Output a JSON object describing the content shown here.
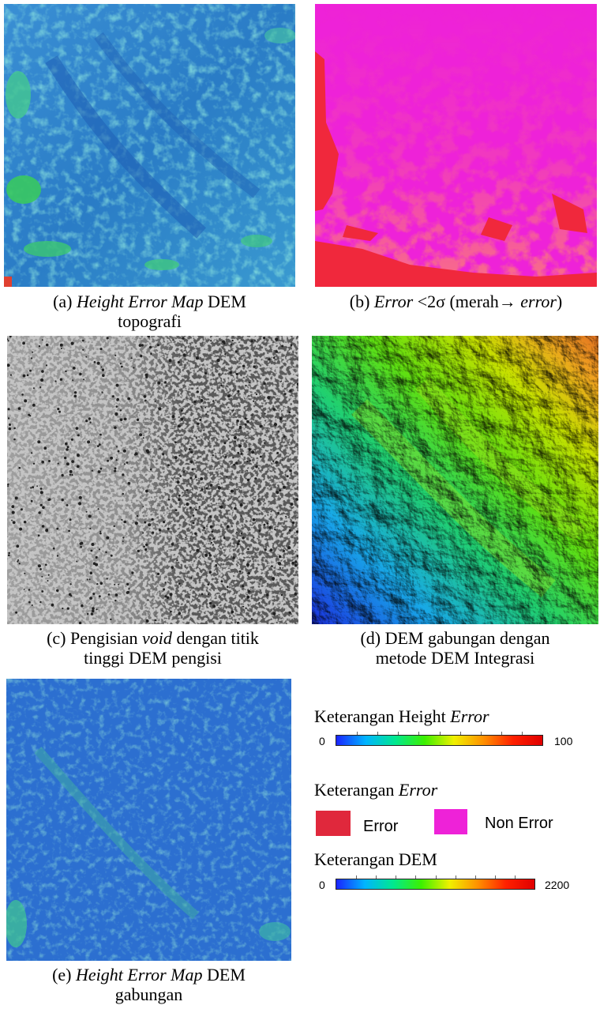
{
  "figures": [
    {
      "id": "a",
      "prefix": "(a) ",
      "italic": "Height Error Map",
      "suffix": " DEM",
      "line2": "topografi"
    },
    {
      "id": "b",
      "prefix": "(b) ",
      "italic": "Error",
      "suffix": " <2σ (merah→ ",
      "italic2": "error",
      "suffix2": ")"
    },
    {
      "id": "c",
      "prefix": "(c) Pengisian ",
      "italic": "void",
      "suffix": " dengan titik",
      "line2": "tinggi DEM pengisi"
    },
    {
      "id": "d",
      "line1": "(d) DEM gabungan dengan",
      "line2": "metode DEM Integrasi"
    },
    {
      "id": "e",
      "prefix": "(e) ",
      "italic": "Height Error Map",
      "suffix": " DEM",
      "line2": "gabungan"
    }
  ],
  "legend": {
    "height_error": {
      "title_plain": "Keterangan Height ",
      "title_italic": "Error",
      "min": "0",
      "max": "100"
    },
    "error": {
      "title_plain": "Keterangan ",
      "title_italic": "Error",
      "item1": "Error",
      "item2": "Non Error",
      "color1": "#e0283c",
      "color2": "#ee22d8"
    },
    "dem": {
      "title": "Keterangan DEM",
      "min": "0",
      "max": "2200"
    }
  },
  "colors": {
    "ramp": [
      "#1a24ff",
      "#00b4ff",
      "#00e890",
      "#3cf000",
      "#f0f000",
      "#ff9000",
      "#ff2000",
      "#e00000"
    ],
    "magenta": "#ee22d8",
    "error_red": "#f0283c",
    "error_map_base": "#2f86c8",
    "void_grey": "#c4c4c4"
  }
}
